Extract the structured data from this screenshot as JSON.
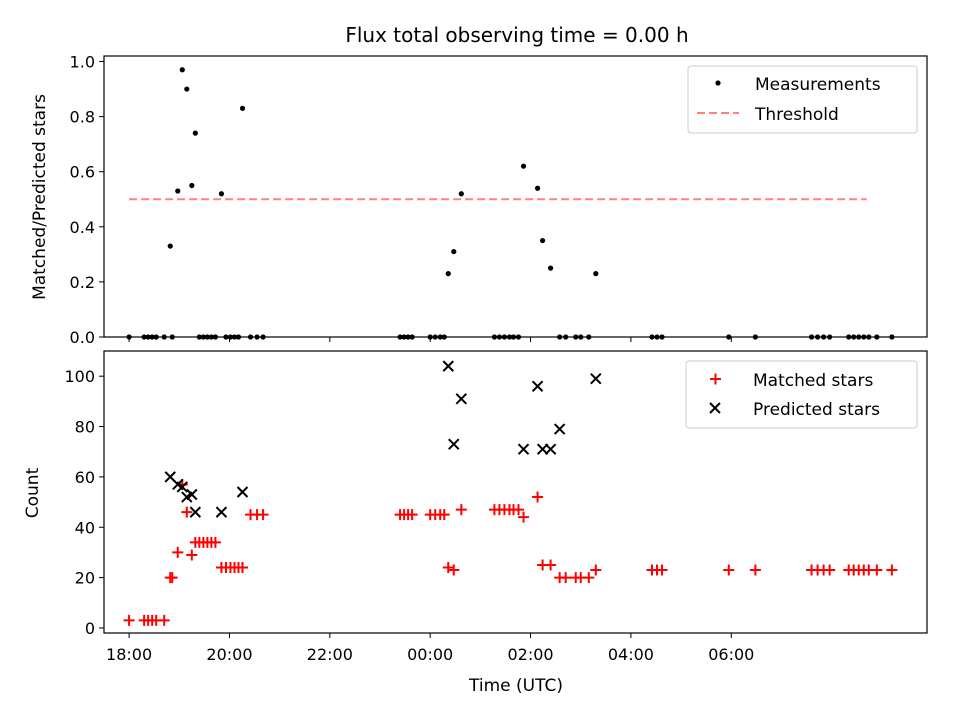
{
  "title": "Flux total observing time = 0.00 h",
  "colors": {
    "measurements": "#000000",
    "threshold": "#ff8080",
    "matched": "#ff0000",
    "predicted": "#000000"
  },
  "chart_data": [
    {
      "type": "scatter",
      "title": "Flux total observing time = 0.00 h",
      "xlabel": "",
      "ylabel": "Matched/Predicted stars",
      "x_unit": "hours from 18:00 UTC",
      "xlim": [
        -0.5,
        15.9
      ],
      "ylim": [
        0.0,
        1.02
      ],
      "y_ticks": [
        0.0,
        0.2,
        0.4,
        0.6,
        0.8,
        1.0
      ],
      "y_tick_labels": [
        "0.0",
        "0.2",
        "0.4",
        "0.6",
        "0.8",
        "1.0"
      ],
      "legend": {
        "position": "top-right",
        "entries": [
          "Measurements",
          "Threshold"
        ]
      },
      "series": [
        {
          "name": "Measurements",
          "marker": "dot",
          "x": [
            0.0,
            0.3,
            0.38,
            0.46,
            0.54,
            0.7,
            0.82,
            0.86,
            0.97,
            1.06,
            1.15,
            1.25,
            1.32,
            1.4,
            1.48,
            1.56,
            1.64,
            1.72,
            1.84,
            1.93,
            2.02,
            2.1,
            2.18,
            2.26,
            2.42,
            2.55,
            2.67,
            5.4,
            5.48,
            5.56,
            5.64,
            6.0,
            6.1,
            6.2,
            6.28,
            6.36,
            6.47,
            6.62,
            7.28,
            7.38,
            7.48,
            7.58,
            7.66,
            7.76,
            7.86,
            8.14,
            8.24,
            8.4,
            8.58,
            8.7,
            8.9,
            9.0,
            9.16,
            9.3,
            10.42,
            10.52,
            10.62,
            11.95,
            12.48,
            13.6,
            13.72,
            13.84,
            13.96,
            14.34,
            14.44,
            14.54,
            14.64,
            14.74,
            14.9,
            15.2
          ],
          "y": [
            0,
            0,
            0,
            0,
            0,
            0,
            0.33,
            0,
            0.53,
            0.97,
            0.9,
            0.55,
            0.74,
            0,
            0,
            0,
            0,
            0,
            0.52,
            0,
            0,
            0,
            0,
            0.83,
            0,
            0,
            0,
            0,
            0,
            0,
            0,
            0,
            0,
            0,
            0,
            0.23,
            0.31,
            0.52,
            0,
            0,
            0,
            0,
            0,
            0,
            0.62,
            0.54,
            0.35,
            0.25,
            0,
            0,
            0,
            0,
            0,
            0.23,
            0,
            0,
            0,
            0,
            0,
            0,
            0,
            0,
            0,
            0,
            0,
            0,
            0,
            0,
            0,
            0
          ]
        },
        {
          "name": "Threshold",
          "type": "line",
          "style": "dashed",
          "x": [
            0.0,
            14.7
          ],
          "y": [
            0.5,
            0.5
          ]
        }
      ]
    },
    {
      "type": "scatter",
      "title": "",
      "xlabel": "Time (UTC)",
      "ylabel": "Count",
      "x_unit": "hours from 18:00 UTC",
      "xlim": [
        -0.5,
        15.9
      ],
      "ylim": [
        -2,
        110
      ],
      "x_ticks": [
        0,
        2,
        4,
        6,
        8,
        10,
        12
      ],
      "x_tick_labels": [
        "18:00",
        "20:00",
        "22:00",
        "00:00",
        "02:00",
        "04:00",
        "06:00"
      ],
      "y_ticks": [
        0,
        20,
        40,
        60,
        80,
        100
      ],
      "y_tick_labels": [
        "0",
        "20",
        "40",
        "60",
        "80",
        "100"
      ],
      "legend": {
        "position": "top-right",
        "entries": [
          "Matched stars",
          "Predicted stars"
        ]
      },
      "series": [
        {
          "name": "Matched stars",
          "marker": "plus",
          "x": [
            0.0,
            0.3,
            0.38,
            0.46,
            0.54,
            0.7,
            0.82,
            0.86,
            0.97,
            1.06,
            1.15,
            1.25,
            1.32,
            1.4,
            1.48,
            1.56,
            1.64,
            1.72,
            1.84,
            1.93,
            2.02,
            2.1,
            2.18,
            2.26,
            2.42,
            2.55,
            2.67,
            5.4,
            5.48,
            5.56,
            5.64,
            6.0,
            6.1,
            6.2,
            6.28,
            6.36,
            6.47,
            6.62,
            7.28,
            7.38,
            7.48,
            7.58,
            7.66,
            7.76,
            7.86,
            8.14,
            8.24,
            8.4,
            8.58,
            8.7,
            8.9,
            9.0,
            9.16,
            9.3,
            10.42,
            10.52,
            10.62,
            11.95,
            12.48,
            13.6,
            13.72,
            13.84,
            13.96,
            14.34,
            14.44,
            14.54,
            14.64,
            14.74,
            14.9,
            15.2
          ],
          "y": [
            3,
            3,
            3,
            3,
            3,
            3,
            20,
            20,
            30,
            57,
            46,
            29,
            34,
            34,
            34,
            34,
            34,
            34,
            24,
            24,
            24,
            24,
            24,
            24,
            45,
            45,
            45,
            45,
            45,
            45,
            45,
            45,
            45,
            45,
            45,
            24,
            23,
            47,
            47,
            47,
            47,
            47,
            47,
            47,
            44,
            52,
            25,
            25,
            20,
            20,
            20,
            20,
            20,
            23,
            23,
            23,
            23,
            23,
            23,
            23,
            23,
            23,
            23,
            23,
            23,
            23,
            23,
            23,
            23,
            23
          ]
        },
        {
          "name": "Predicted stars",
          "marker": "x",
          "x": [
            0.82,
            0.97,
            1.06,
            1.15,
            1.25,
            1.32,
            1.84,
            2.26,
            6.36,
            6.47,
            6.62,
            7.86,
            8.14,
            8.24,
            8.4,
            8.58,
            9.3
          ],
          "y": [
            60,
            57,
            56,
            52,
            53,
            46,
            46,
            54,
            104,
            73,
            91,
            71,
            96,
            71,
            71,
            79,
            99
          ]
        }
      ]
    }
  ]
}
